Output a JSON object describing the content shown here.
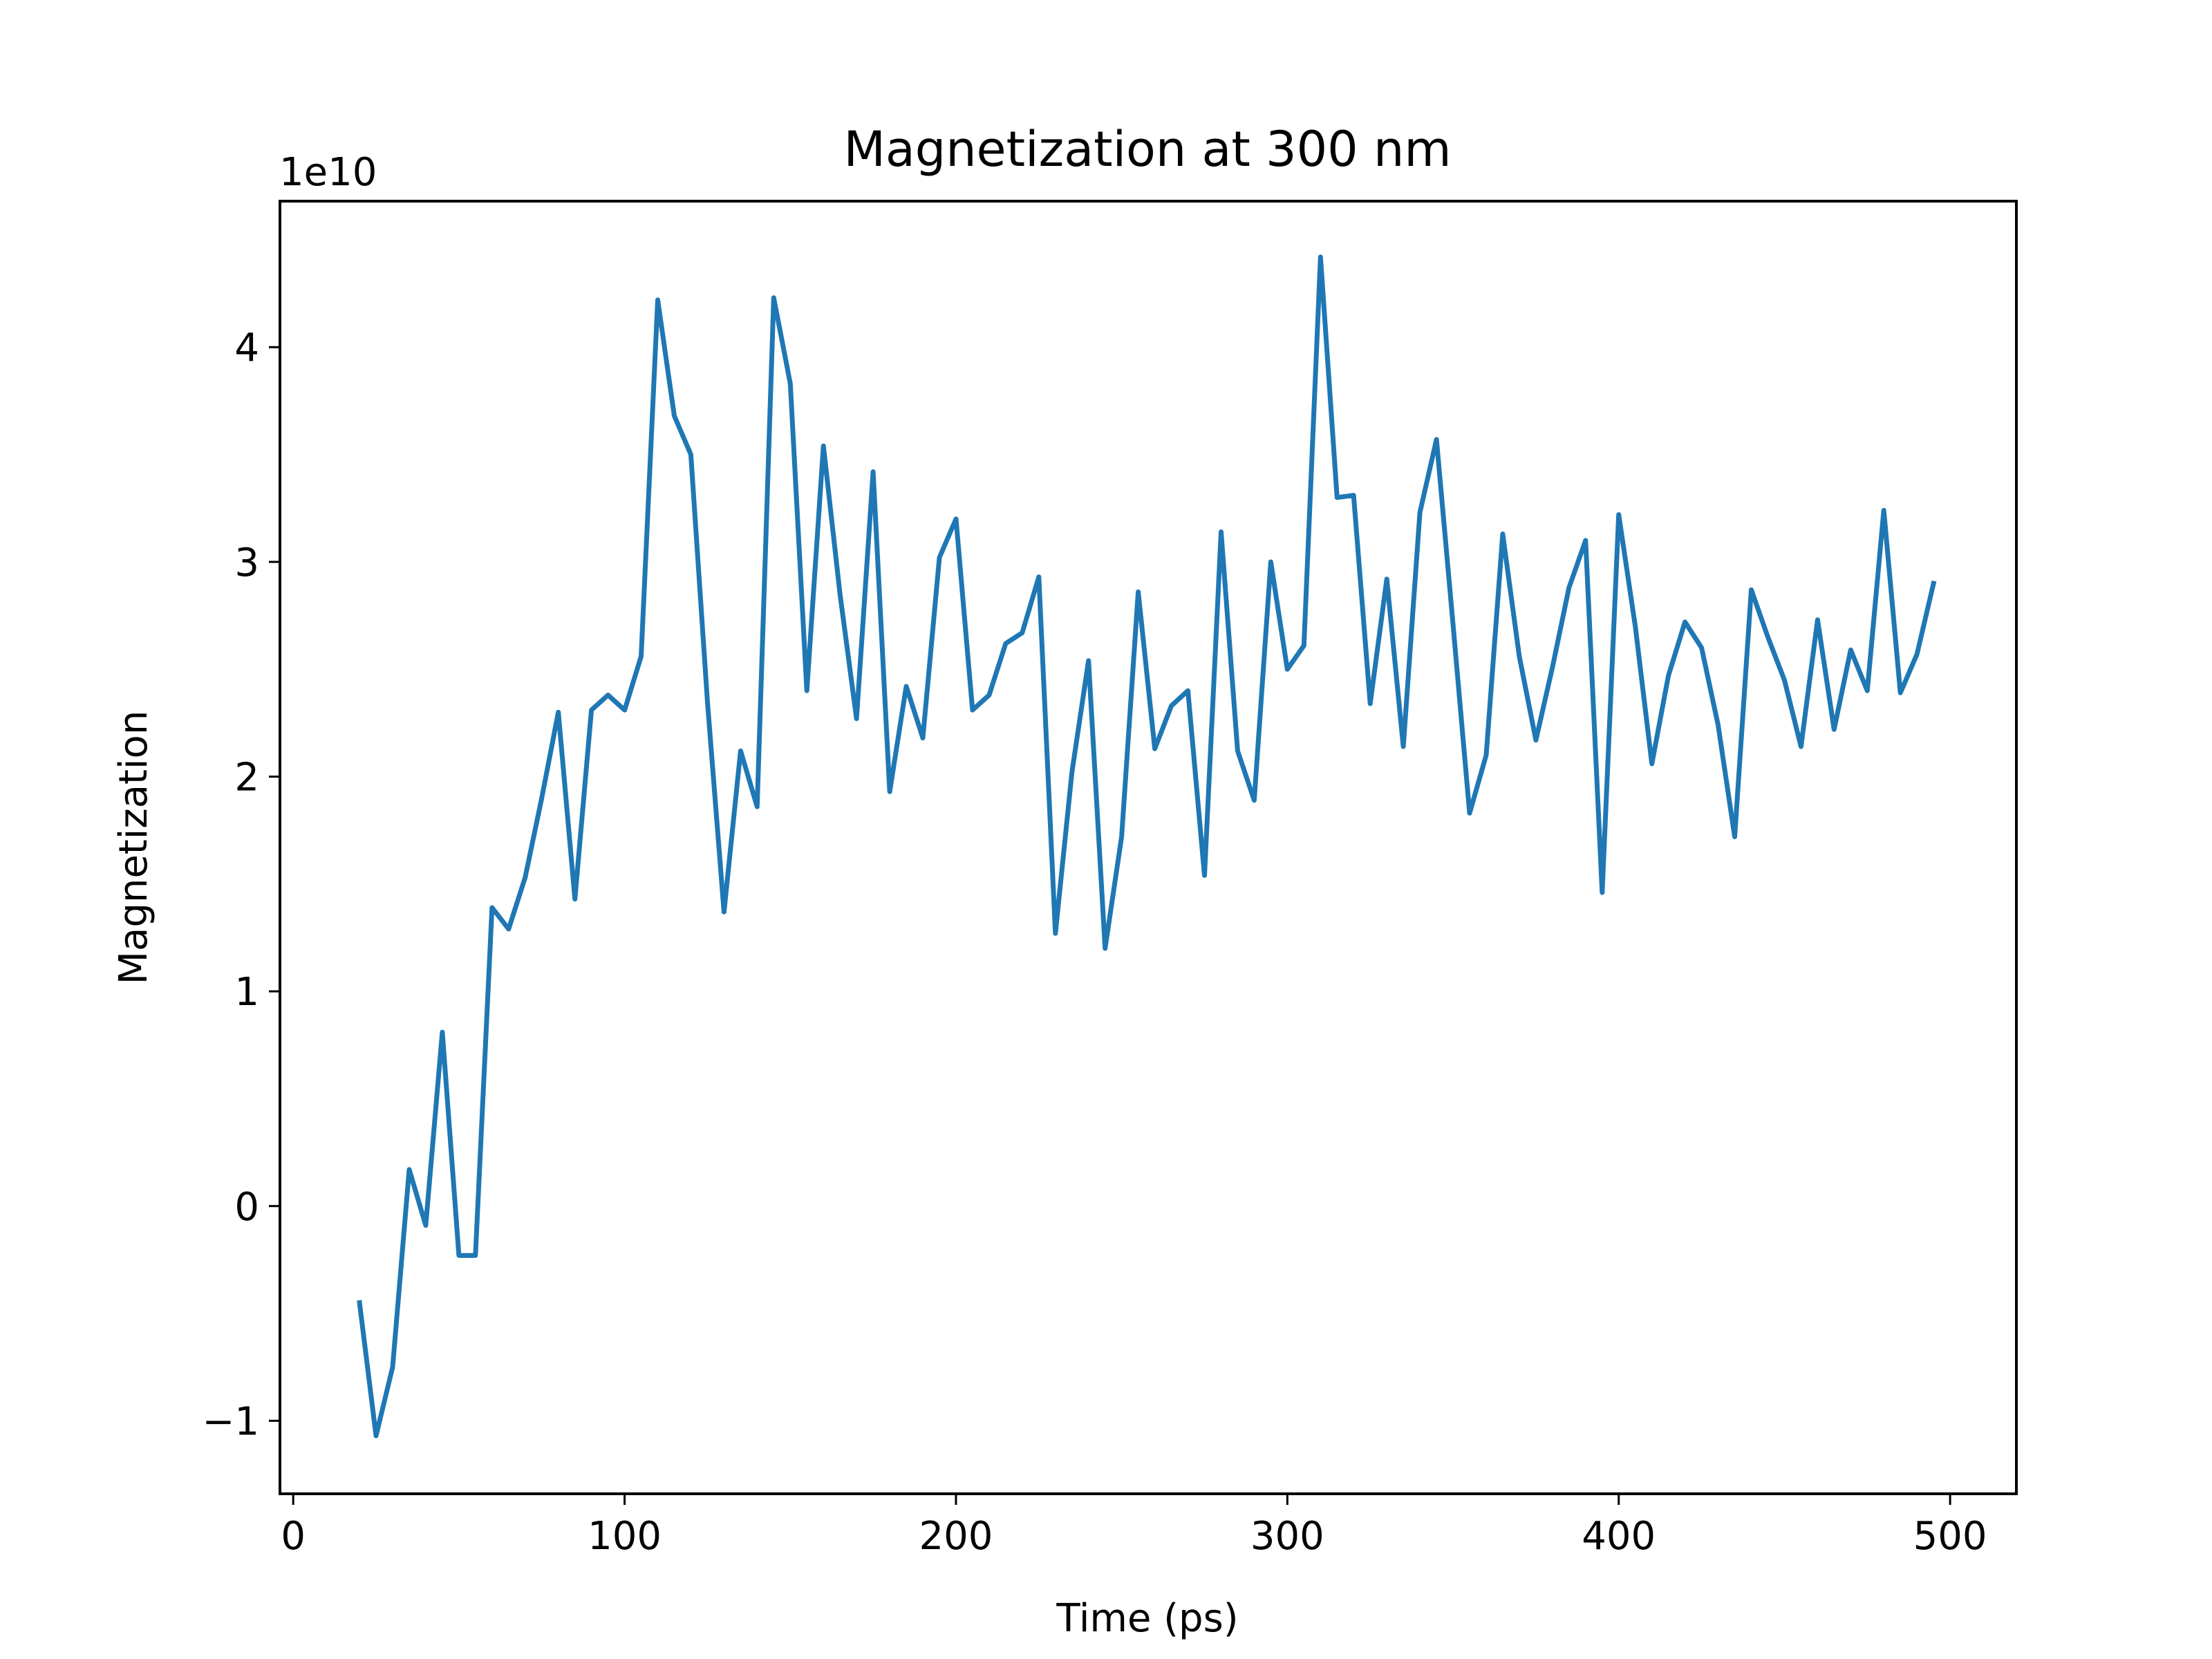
{
  "chart_data": {
    "type": "line",
    "title": "Magnetization at 300 nm",
    "xlabel": "Time (ps)",
    "ylabel": "Magnetization",
    "y_multiplier_label": "1e10",
    "xlim": [
      -4,
      520
    ],
    "ylim": [
      -1.34,
      4.68
    ],
    "x_ticks": [
      0,
      100,
      200,
      300,
      400,
      500
    ],
    "x_tick_labels": [
      "0",
      "100",
      "200",
      "300",
      "400",
      "500"
    ],
    "y_ticks": [
      -1,
      0,
      1,
      2,
      3,
      4
    ],
    "y_tick_labels": [
      "−1",
      "0",
      "1",
      "2",
      "3",
      "4"
    ],
    "grid": false,
    "legend": "none",
    "series": [
      {
        "color": "#1f77b4",
        "x": [
          20,
          25,
          30,
          35,
          40,
          45,
          50,
          55,
          60,
          65,
          70,
          75,
          80,
          85,
          90,
          95,
          100,
          105,
          110,
          115,
          120,
          125,
          130,
          135,
          140,
          145,
          150,
          155,
          160,
          165,
          170,
          175,
          180,
          185,
          190,
          195,
          200,
          205,
          210,
          215,
          220,
          225,
          230,
          235,
          240,
          245,
          250,
          255,
          260,
          265,
          270,
          275,
          280,
          285,
          290,
          295,
          300,
          305,
          310,
          315,
          320,
          325,
          330,
          335,
          340,
          345,
          350,
          355,
          360,
          365,
          370,
          375,
          380,
          385,
          390,
          395,
          400,
          405,
          410,
          415,
          420,
          425,
          430,
          435,
          440,
          445,
          450,
          455,
          460,
          465,
          470,
          475,
          480,
          485,
          490,
          495
        ],
        "y": [
          -0.45,
          -1.07,
          -0.75,
          0.17,
          -0.09,
          0.81,
          -0.23,
          -0.23,
          1.39,
          1.29,
          1.53,
          1.9,
          2.3,
          1.43,
          2.31,
          2.38,
          2.31,
          2.56,
          4.22,
          3.68,
          3.5,
          2.35,
          1.37,
          2.12,
          1.86,
          4.23,
          3.83,
          2.4,
          3.54,
          2.85,
          2.27,
          3.42,
          1.93,
          2.42,
          2.18,
          3.02,
          3.2,
          2.31,
          2.38,
          2.62,
          2.67,
          2.93,
          1.27,
          2.02,
          2.54,
          1.2,
          1.72,
          2.86,
          2.13,
          2.33,
          2.4,
          1.54,
          3.14,
          2.12,
          1.89,
          3.0,
          2.5,
          2.61,
          4.42,
          3.3,
          3.31,
          2.34,
          2.92,
          2.14,
          3.23,
          3.57,
          2.71,
          1.83,
          2.1,
          3.13,
          2.56,
          2.17,
          2.51,
          2.88,
          3.1,
          1.46,
          3.22,
          2.7,
          2.06,
          2.47,
          2.72,
          2.6,
          2.24,
          1.72,
          2.87,
          2.65,
          2.45,
          2.14,
          2.73,
          2.22,
          2.59,
          2.4,
          3.24,
          2.39,
          2.57,
          2.9
        ]
      }
    ]
  }
}
